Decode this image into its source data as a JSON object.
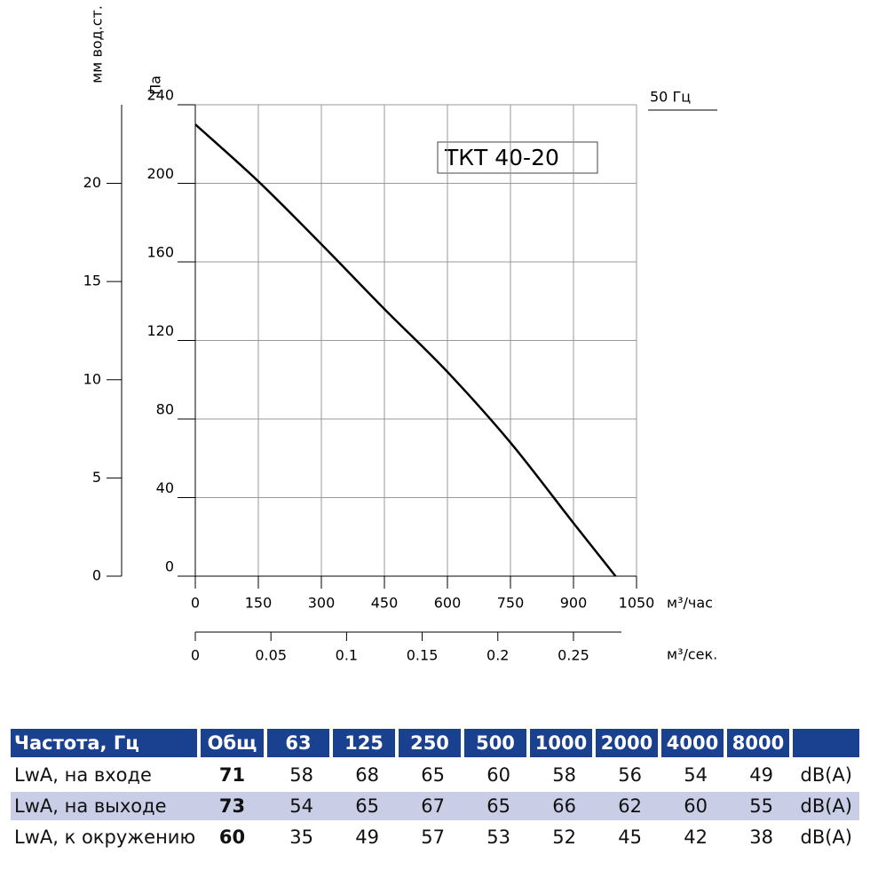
{
  "chart_data": {
    "type": "line",
    "title": "ТКТ 40-20",
    "note": "50 Гц",
    "y_label": "Па",
    "y2_label": "мм вод.ст.",
    "x_label": "м³/час",
    "x2_label": "м³/сек.",
    "x": [
      0,
      150,
      300,
      450,
      600,
      750,
      900,
      1000
    ],
    "series": [
      {
        "color": "#000000",
        "values": [
          230,
          201,
          169,
          136,
          104,
          68,
          27,
          0
        ]
      }
    ],
    "xlim": [
      0,
      1050
    ],
    "xticks": [
      0,
      150,
      300,
      450,
      600,
      750,
      900,
      1050
    ],
    "ylim": [
      0,
      240
    ],
    "yticks": [
      0,
      40,
      80,
      120,
      160,
      200,
      240
    ],
    "y2lim": [
      0,
      24
    ],
    "y2ticks": [
      0,
      5,
      10,
      15,
      20
    ],
    "x2lim": [
      0,
      0.2917
    ],
    "x2ticks": [
      0,
      0.05,
      0.1,
      0.15,
      0.2,
      0.25
    ],
    "grid": true
  },
  "table": {
    "header": [
      "Частота, Гц",
      "Общ",
      "63",
      "125",
      "250",
      "500",
      "1000",
      "2000",
      "4000",
      "8000"
    ],
    "rows": [
      {
        "label": "LwA, на входе",
        "values": [
          71,
          58,
          68,
          65,
          60,
          58,
          56,
          54,
          49
        ],
        "unit": "dB(A)"
      },
      {
        "label": "LwA, на выходе",
        "values": [
          73,
          54,
          65,
          67,
          65,
          66,
          62,
          60,
          55
        ],
        "unit": "dB(A)"
      },
      {
        "label": "LwA, к окружению",
        "values": [
          60,
          35,
          49,
          57,
          53,
          52,
          45,
          42,
          38
        ],
        "unit": "dB(A)"
      }
    ]
  }
}
